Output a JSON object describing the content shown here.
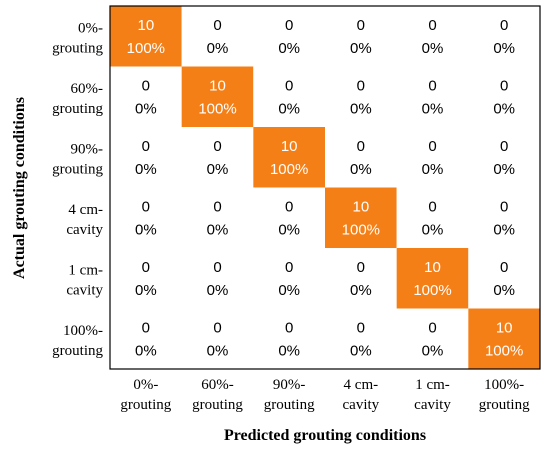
{
  "chart_data": {
    "type": "heatmap",
    "title": "",
    "xlabel": "Predicted grouting conditions",
    "ylabel": "Actual grouting conditions",
    "x_categories": [
      [
        "0%-",
        "grouting"
      ],
      [
        "60%-",
        "grouting"
      ],
      [
        "90%-",
        "grouting"
      ],
      [
        "4 cm-",
        "cavity"
      ],
      [
        "1 cm-",
        "cavity"
      ],
      [
        "100%-",
        "grouting"
      ]
    ],
    "y_categories": [
      [
        "0%-",
        "grouting"
      ],
      [
        "60%-",
        "grouting"
      ],
      [
        "90%-",
        "grouting"
      ],
      [
        "4 cm-",
        "cavity"
      ],
      [
        "1 cm-",
        "cavity"
      ],
      [
        "100%-",
        "grouting"
      ]
    ],
    "counts": [
      [
        10,
        0,
        0,
        0,
        0,
        0
      ],
      [
        0,
        10,
        0,
        0,
        0,
        0
      ],
      [
        0,
        0,
        10,
        0,
        0,
        0
      ],
      [
        0,
        0,
        0,
        10,
        0,
        0
      ],
      [
        0,
        0,
        0,
        0,
        10,
        0
      ],
      [
        0,
        0,
        0,
        0,
        0,
        10
      ]
    ],
    "percentages": [
      [
        "100%",
        "0%",
        "0%",
        "0%",
        "0%",
        "0%"
      ],
      [
        "0%",
        "100%",
        "0%",
        "0%",
        "0%",
        "0%"
      ],
      [
        "0%",
        "0%",
        "100%",
        "0%",
        "0%",
        "0%"
      ],
      [
        "0%",
        "0%",
        "0%",
        "100%",
        "0%",
        "0%"
      ],
      [
        "0%",
        "0%",
        "0%",
        "0%",
        "100%",
        "0%"
      ],
      [
        "0%",
        "0%",
        "0%",
        "0%",
        "0%",
        "100%"
      ]
    ],
    "colors": {
      "highlight": "#f57f17",
      "background": "#ffffff",
      "highlight_text": "#ffffff",
      "text": "#000000",
      "frame": "#000000"
    }
  }
}
